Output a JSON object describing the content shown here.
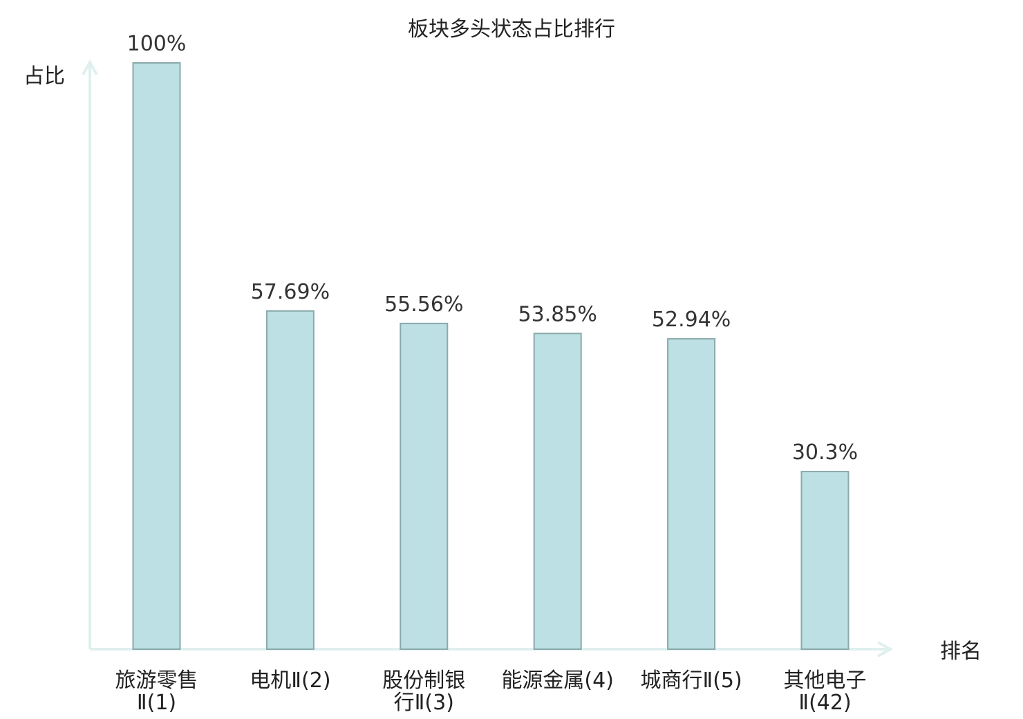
{
  "chart_data": {
    "type": "bar",
    "title": "板块多头状态占比排行",
    "ylabel": "占比",
    "xlabel": "排名",
    "categories": [
      [
        "旅游零售",
        "Ⅱ(1)"
      ],
      [
        "电机Ⅱ(2)"
      ],
      [
        "股份制银",
        "行Ⅱ(3)"
      ],
      [
        "能源金属(4)"
      ],
      [
        "城商行Ⅱ(5)"
      ],
      [
        "其他电子",
        "Ⅱ(42)"
      ]
    ],
    "values": [
      100,
      57.69,
      55.56,
      53.85,
      52.94,
      30.3
    ],
    "value_labels": [
      "100%",
      "57.69%",
      "55.56%",
      "53.85%",
      "52.94%",
      "30.3%"
    ],
    "highlight_index": 5,
    "ylim": [
      0,
      100
    ],
    "grid": false,
    "colors": {
      "bar_fill": "#bce0e3",
      "bar_stroke": "#8aa9ab",
      "axis": "#dff0ee",
      "highlight_text": "#e0201b",
      "text": "#222222"
    }
  }
}
